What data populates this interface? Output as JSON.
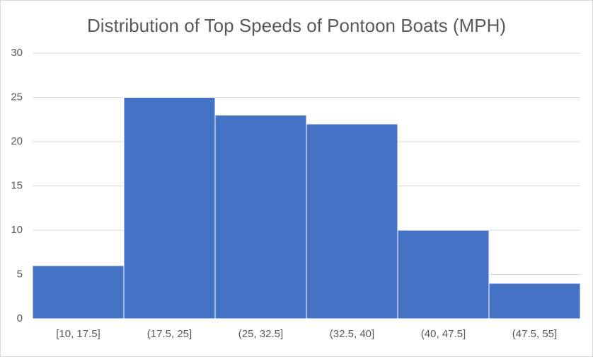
{
  "chart_data": {
    "type": "bar",
    "title": "Distribution of Top Speeds of Pontoon Boats (MPH)",
    "categories": [
      "[10, 17.5]",
      "(17.5, 25]",
      "(25, 32.5]",
      "(32.5, 40]",
      "(40, 47.5]",
      "(47.5, 55]"
    ],
    "values": [
      6,
      25,
      23,
      22,
      10,
      4
    ],
    "color": "#4472c4",
    "ylim": [
      0,
      30
    ],
    "yticks": [
      0,
      5,
      10,
      15,
      20,
      25,
      30
    ],
    "grid": true
  }
}
